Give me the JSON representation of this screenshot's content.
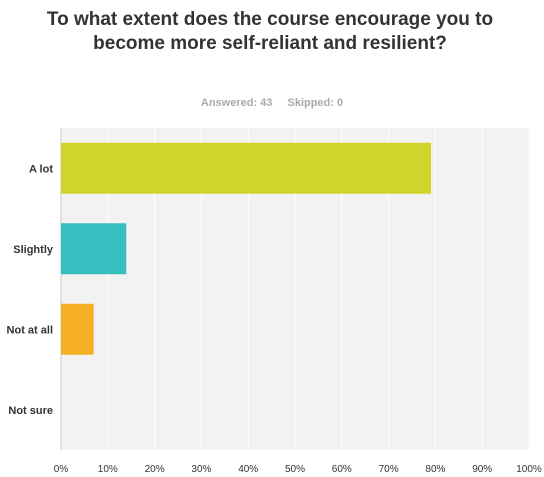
{
  "header": {
    "title": "To what extent does the course encourage you to become more self-reliant and resilient?",
    "answered": "Answered: 43",
    "skipped": "Skipped: 0"
  },
  "colors": {
    "plot_bg": "#f2f2f2",
    "grid": "#ffffff",
    "a_lot": "#cfd52a",
    "slightly": "#35bfbf",
    "not_at_all": "#f6ae25",
    "not_sure": "#8b8b8b"
  },
  "chart_data": {
    "type": "bar",
    "orientation": "horizontal",
    "title": "To what extent does the course encourage you to become more self-reliant and resilient?",
    "categories": [
      "A lot",
      "Slightly",
      "Not at all",
      "Not sure"
    ],
    "values": [
      79.07,
      13.95,
      6.98,
      0
    ],
    "unit": "%",
    "xlim": [
      0,
      100
    ],
    "x_ticks": [
      "0%",
      "10%",
      "20%",
      "30%",
      "40%",
      "50%",
      "60%",
      "70%",
      "80%",
      "90%",
      "100%"
    ],
    "grid": true,
    "legend": "none",
    "xlabel": "",
    "ylabel": ""
  }
}
